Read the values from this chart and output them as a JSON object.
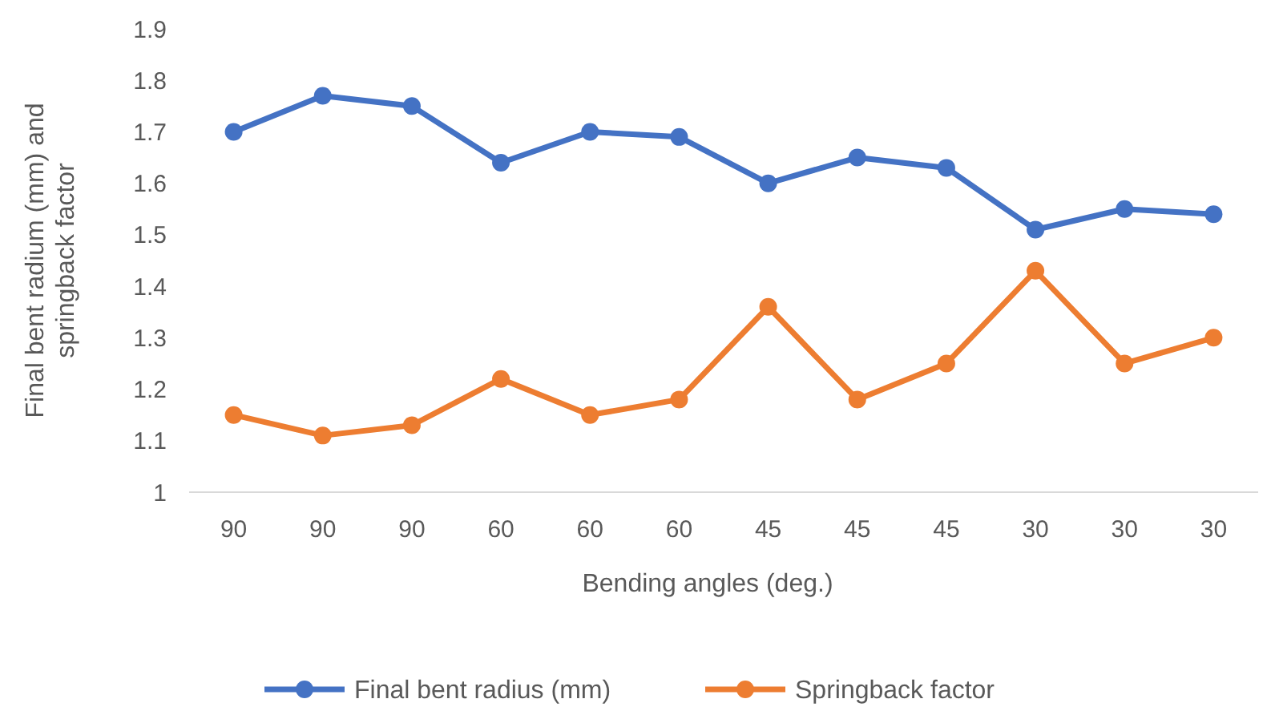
{
  "chart_data": {
    "type": "line",
    "xlabel": "Bending angles (deg.)",
    "ylabel": "Final bent radium (mm) and springback factor",
    "categories": [
      "90",
      "90",
      "90",
      "60",
      "60",
      "60",
      "45",
      "45",
      "45",
      "30",
      "30",
      "30"
    ],
    "series": [
      {
        "name": "Final bent radius (mm)",
        "color": "#4472c4",
        "values": [
          1.7,
          1.77,
          1.75,
          1.64,
          1.7,
          1.69,
          1.6,
          1.65,
          1.63,
          1.51,
          1.55,
          1.54
        ]
      },
      {
        "name": "Springback factor",
        "color": "#ed7d31",
        "values": [
          1.15,
          1.11,
          1.13,
          1.22,
          1.15,
          1.18,
          1.36,
          1.18,
          1.25,
          1.43,
          1.25,
          1.3
        ]
      }
    ],
    "ylim": [
      1,
      1.9
    ],
    "yticks": [
      {
        "value": 1,
        "label": "1"
      },
      1.1,
      1.2,
      1.3,
      1.4,
      1.5,
      1.6,
      1.7,
      1.8,
      1.9
    ],
    "grid": false,
    "legend": "bottom",
    "marker": "circle",
    "line_style": "solid"
  }
}
